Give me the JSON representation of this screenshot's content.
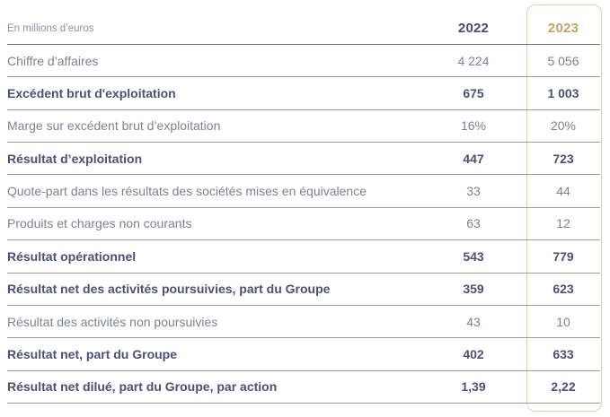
{
  "colors": {
    "bold_text": "#4b5174",
    "normal_text": "#7d8295",
    "unit_text": "#8d91a1",
    "year_2022_text": "#464c6d",
    "year_2023_text": "#c8a268",
    "highlight_border": "#e6cfa4",
    "row_line": "#9a9ba3",
    "header_line": "#6e7180"
  },
  "table": {
    "unit_label": "En millions d’euros",
    "columns": [
      "2022",
      "2023"
    ],
    "rows": [
      {
        "label": "Chiffre d’affaires",
        "v2022": "4 224",
        "v2023": "5 056",
        "bold": false
      },
      {
        "label": "Excédent brut d'exploitation",
        "v2022": "675",
        "v2023": "1 003",
        "bold": true
      },
      {
        "label": "Marge sur excédent brut d’exploitation",
        "v2022": "16%",
        "v2023": "20%",
        "bold": false
      },
      {
        "label": "Résultat d’exploitation",
        "v2022": "447",
        "v2023": "723",
        "bold": true
      },
      {
        "label": "Quote-part dans les résultats des sociétés mises en équivalence",
        "v2022": "33",
        "v2023": "44",
        "bold": false
      },
      {
        "label": "Produits et charges non courants",
        "v2022": "63",
        "v2023": "12",
        "bold": false
      },
      {
        "label": "Résultat opérationnel",
        "v2022": "543",
        "v2023": "779",
        "bold": true
      },
      {
        "label": "Résultat net des activités poursuivies, part du Groupe",
        "v2022": "359",
        "v2023": "623",
        "bold": true
      },
      {
        "label": "Résultat des activités non poursuivies",
        "v2022": "43",
        "v2023": "10",
        "bold": false
      },
      {
        "label": "Résultat net, part du Groupe",
        "v2022": "402",
        "v2023": "633",
        "bold": true
      },
      {
        "label": "Résultat net dilué, part du Groupe, par action",
        "v2022": "1,39",
        "v2023": "2,22",
        "bold": true
      }
    ]
  }
}
